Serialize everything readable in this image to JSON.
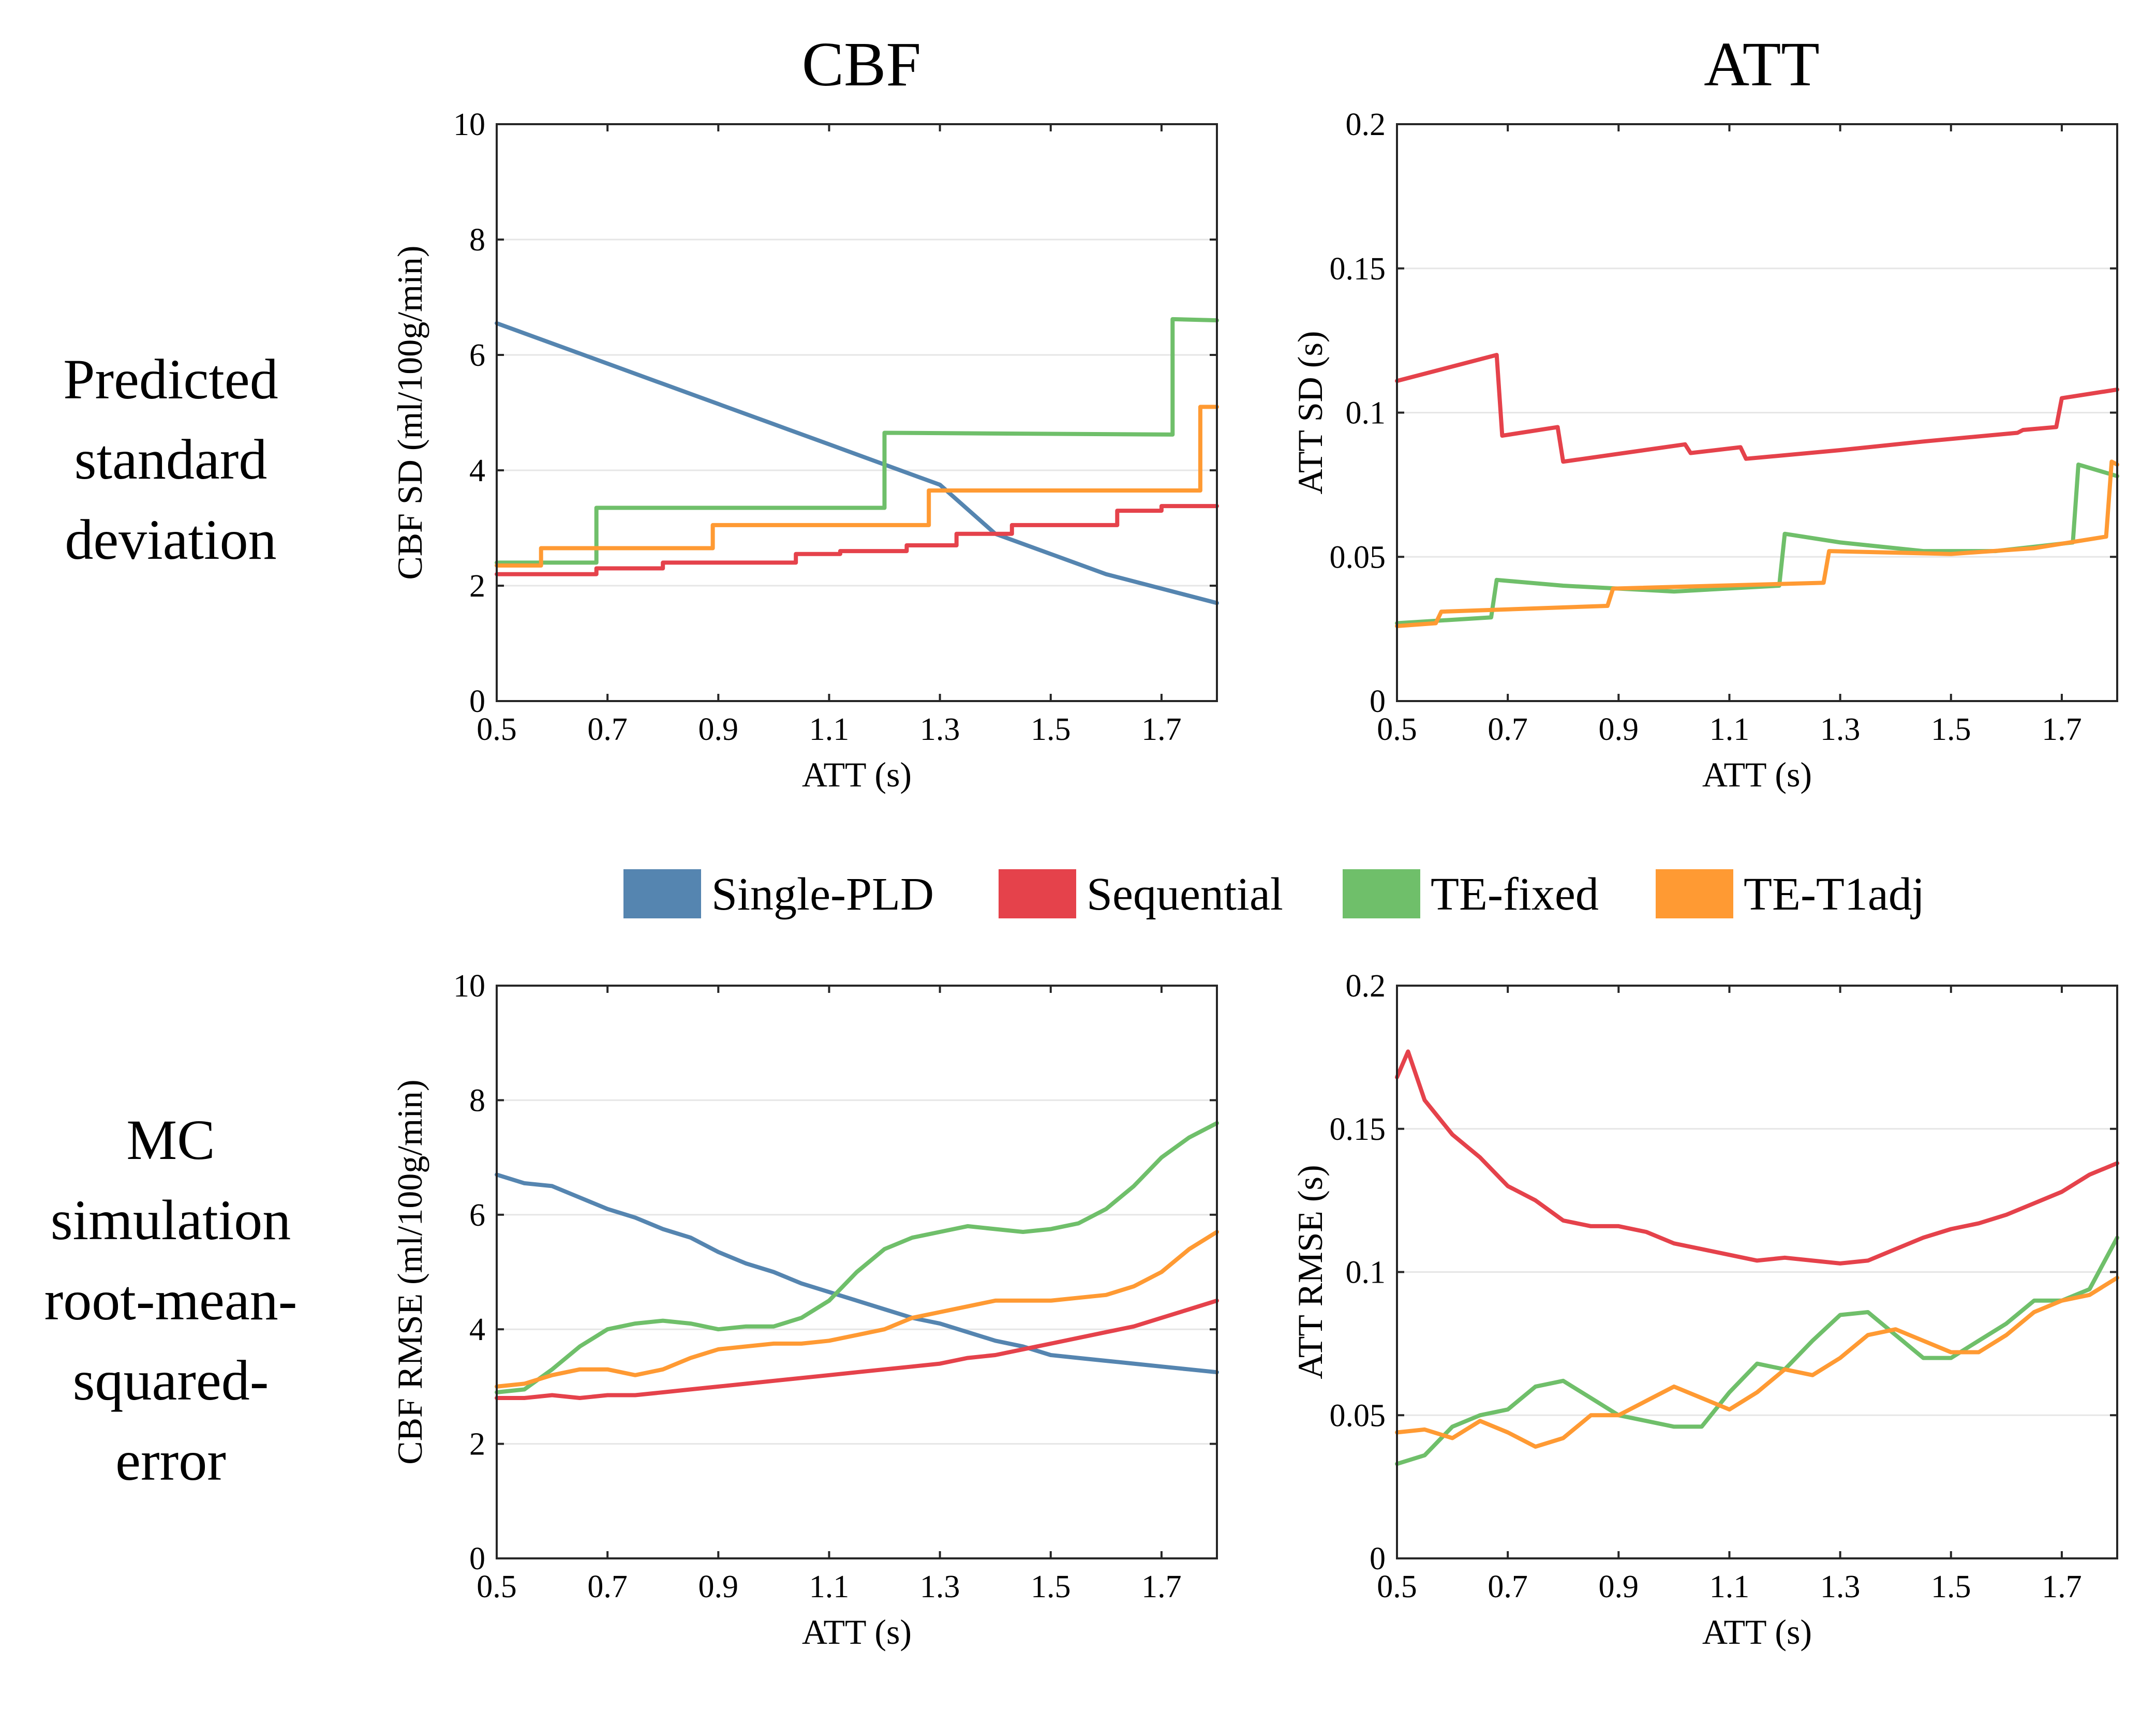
{
  "column_titles": [
    "CBF",
    "ATT"
  ],
  "row_labels": [
    [
      "Predicted",
      "standard",
      "deviation"
    ],
    [
      "MC",
      "simulation",
      "root-mean-",
      "squared-",
      "error"
    ]
  ],
  "legend": [
    {
      "name": "Single-PLD",
      "color": "#5585b0"
    },
    {
      "name": "Sequential",
      "color": "#e5424b"
    },
    {
      "name": "TE-fixed",
      "color": "#6fbf6a"
    },
    {
      "name": "TE-T1adj",
      "color": "#ff9a33"
    }
  ],
  "chart_data": [
    {
      "type": "line",
      "position": "top-left",
      "xlabel": "ATT (s)",
      "ylabel": "CBF SD (ml/100g/min)",
      "xlim": [
        0.5,
        1.8
      ],
      "ylim": [
        0,
        10
      ],
      "xticks": [
        0.5,
        0.7,
        0.9,
        1.1,
        1.3,
        1.5,
        1.7
      ],
      "xtick_labels": [
        "0.5",
        "0.7",
        "0.9",
        "1.1",
        "1.3",
        "1.5",
        "1.7"
      ],
      "yticks": [
        0,
        2,
        4,
        6,
        8,
        10
      ],
      "ytick_labels": [
        "0",
        "2",
        "4",
        "6",
        "8",
        "10"
      ],
      "grid": true,
      "series": [
        {
          "name": "Single-PLD",
          "x": [
            0.5,
            0.6,
            0.7,
            0.8,
            0.9,
            1.0,
            1.1,
            1.2,
            1.3,
            1.4,
            1.5,
            1.6,
            1.7,
            1.8
          ],
          "y": [
            6.55,
            6.2,
            5.85,
            5.5,
            5.15,
            4.8,
            4.45,
            4.1,
            3.75,
            2.9,
            2.55,
            2.2,
            1.95,
            1.7
          ]
        },
        {
          "name": "Sequential",
          "x": [
            0.5,
            0.68,
            0.68,
            0.8,
            0.8,
            1.04,
            1.04,
            1.12,
            1.12,
            1.24,
            1.24,
            1.33,
            1.33,
            1.43,
            1.43,
            1.62,
            1.62,
            1.7,
            1.7,
            1.8
          ],
          "y": [
            2.2,
            2.2,
            2.3,
            2.3,
            2.4,
            2.4,
            2.55,
            2.55,
            2.6,
            2.6,
            2.7,
            2.7,
            2.9,
            2.9,
            3.05,
            3.05,
            3.3,
            3.3,
            3.38,
            3.38
          ]
        },
        {
          "name": "TE-fixed",
          "x": [
            0.5,
            0.68,
            0.68,
            1.2,
            1.2,
            1.72,
            1.72,
            1.8
          ],
          "y": [
            2.4,
            2.4,
            3.35,
            3.35,
            4.65,
            4.62,
            6.62,
            6.6
          ]
        },
        {
          "name": "TE-T1adj",
          "x": [
            0.5,
            0.58,
            0.58,
            0.89,
            0.89,
            1.28,
            1.28,
            1.77,
            1.77,
            1.8
          ],
          "y": [
            2.35,
            2.35,
            2.65,
            2.65,
            3.05,
            3.05,
            3.65,
            3.65,
            5.1,
            5.1
          ]
        }
      ]
    },
    {
      "type": "line",
      "position": "top-right",
      "xlabel": "ATT (s)",
      "ylabel": "ATT SD (s)",
      "xlim": [
        0.5,
        1.8
      ],
      "ylim": [
        0,
        0.2
      ],
      "xticks": [
        0.5,
        0.7,
        0.9,
        1.1,
        1.3,
        1.5,
        1.7
      ],
      "xtick_labels": [
        "0.5",
        "0.7",
        "0.9",
        "1.1",
        "1.3",
        "1.5",
        "1.7"
      ],
      "yticks": [
        0,
        0.05,
        0.1,
        0.15,
        0.2
      ],
      "ytick_labels": [
        "0",
        "0.05",
        "0.1",
        "0.15",
        "0.2"
      ],
      "grid": true,
      "series": [
        {
          "name": "Sequential",
          "x": [
            0.5,
            0.68,
            0.69,
            0.79,
            0.8,
            1.02,
            1.03,
            1.12,
            1.13,
            1.3,
            1.45,
            1.62,
            1.63,
            1.69,
            1.7,
            1.8
          ],
          "y": [
            0.111,
            0.12,
            0.092,
            0.095,
            0.083,
            0.089,
            0.086,
            0.088,
            0.084,
            0.087,
            0.09,
            0.093,
            0.094,
            0.095,
            0.105,
            0.108
          ]
        },
        {
          "name": "TE-fixed",
          "x": [
            0.5,
            0.67,
            0.68,
            0.8,
            1.0,
            1.19,
            1.2,
            1.3,
            1.45,
            1.58,
            1.72,
            1.73,
            1.8
          ],
          "y": [
            0.027,
            0.029,
            0.042,
            0.04,
            0.038,
            0.04,
            0.058,
            0.055,
            0.052,
            0.052,
            0.055,
            0.082,
            0.078
          ]
        },
        {
          "name": "TE-T1adj",
          "x": [
            0.5,
            0.57,
            0.58,
            0.88,
            0.89,
            1.27,
            1.28,
            1.5,
            1.65,
            1.78,
            1.79,
            1.8
          ],
          "y": [
            0.026,
            0.027,
            0.031,
            0.033,
            0.039,
            0.041,
            0.052,
            0.051,
            0.053,
            0.057,
            0.083,
            0.082
          ]
        }
      ]
    },
    {
      "type": "line",
      "position": "bottom-left",
      "xlabel": "ATT (s)",
      "ylabel": "CBF RMSE (ml/100g/min)",
      "xlim": [
        0.5,
        1.8
      ],
      "ylim": [
        0,
        10
      ],
      "xticks": [
        0.5,
        0.7,
        0.9,
        1.1,
        1.3,
        1.5,
        1.7
      ],
      "xtick_labels": [
        "0.5",
        "0.7",
        "0.9",
        "1.1",
        "1.3",
        "1.5",
        "1.7"
      ],
      "yticks": [
        0,
        2,
        4,
        6,
        8,
        10
      ],
      "ytick_labels": [
        "0",
        "2",
        "4",
        "6",
        "8",
        "10"
      ],
      "grid": true,
      "series": [
        {
          "name": "Single-PLD",
          "x": [
            0.5,
            0.55,
            0.6,
            0.65,
            0.7,
            0.75,
            0.8,
            0.85,
            0.9,
            0.95,
            1.0,
            1.05,
            1.1,
            1.15,
            1.2,
            1.25,
            1.3,
            1.35,
            1.4,
            1.45,
            1.5,
            1.55,
            1.6,
            1.65,
            1.7,
            1.75,
            1.8
          ],
          "y": [
            6.7,
            6.55,
            6.5,
            6.3,
            6.1,
            5.95,
            5.75,
            5.6,
            5.35,
            5.15,
            5.0,
            4.8,
            4.65,
            4.5,
            4.35,
            4.2,
            4.1,
            3.95,
            3.8,
            3.7,
            3.55,
            3.5,
            3.45,
            3.4,
            3.35,
            3.3,
            3.25
          ]
        },
        {
          "name": "Sequential",
          "x": [
            0.5,
            0.55,
            0.6,
            0.65,
            0.7,
            0.75,
            0.8,
            0.85,
            0.9,
            0.95,
            1.0,
            1.05,
            1.1,
            1.15,
            1.2,
            1.25,
            1.3,
            1.35,
            1.4,
            1.45,
            1.5,
            1.55,
            1.6,
            1.65,
            1.7,
            1.75,
            1.8
          ],
          "y": [
            2.8,
            2.8,
            2.85,
            2.8,
            2.85,
            2.85,
            2.9,
            2.95,
            3.0,
            3.05,
            3.1,
            3.15,
            3.2,
            3.25,
            3.3,
            3.35,
            3.4,
            3.5,
            3.55,
            3.65,
            3.75,
            3.85,
            3.95,
            4.05,
            4.2,
            4.35,
            4.5
          ]
        },
        {
          "name": "TE-fixed",
          "x": [
            0.5,
            0.55,
            0.6,
            0.65,
            0.7,
            0.75,
            0.8,
            0.85,
            0.9,
            0.95,
            1.0,
            1.05,
            1.1,
            1.15,
            1.2,
            1.25,
            1.3,
            1.35,
            1.4,
            1.45,
            1.5,
            1.55,
            1.6,
            1.65,
            1.7,
            1.75,
            1.8
          ],
          "y": [
            2.9,
            2.95,
            3.3,
            3.7,
            4.0,
            4.1,
            4.15,
            4.1,
            4.0,
            4.05,
            4.05,
            4.2,
            4.5,
            5.0,
            5.4,
            5.6,
            5.7,
            5.8,
            5.75,
            5.7,
            5.75,
            5.85,
            6.1,
            6.5,
            7.0,
            7.35,
            7.6
          ]
        },
        {
          "name": "TE-T1adj",
          "x": [
            0.5,
            0.55,
            0.6,
            0.65,
            0.7,
            0.75,
            0.8,
            0.85,
            0.9,
            0.95,
            1.0,
            1.05,
            1.1,
            1.15,
            1.2,
            1.25,
            1.3,
            1.35,
            1.4,
            1.45,
            1.5,
            1.55,
            1.6,
            1.65,
            1.7,
            1.75,
            1.8
          ],
          "y": [
            3.0,
            3.05,
            3.2,
            3.3,
            3.3,
            3.2,
            3.3,
            3.5,
            3.65,
            3.7,
            3.75,
            3.75,
            3.8,
            3.9,
            4.0,
            4.2,
            4.3,
            4.4,
            4.5,
            4.5,
            4.5,
            4.55,
            4.6,
            4.75,
            5.0,
            5.4,
            5.7
          ]
        }
      ]
    },
    {
      "type": "line",
      "position": "bottom-right",
      "xlabel": "ATT (s)",
      "ylabel": "ATT RMSE (s)",
      "xlim": [
        0.5,
        1.8
      ],
      "ylim": [
        0,
        0.2
      ],
      "xticks": [
        0.5,
        0.7,
        0.9,
        1.1,
        1.3,
        1.5,
        1.7
      ],
      "xtick_labels": [
        "0.5",
        "0.7",
        "0.9",
        "1.1",
        "1.3",
        "1.5",
        "1.7"
      ],
      "yticks": [
        0,
        0.05,
        0.1,
        0.15,
        0.2
      ],
      "ytick_labels": [
        "0",
        "0.05",
        "0.1",
        "0.15",
        "0.2"
      ],
      "grid": true,
      "series": [
        {
          "name": "Sequential",
          "x": [
            0.5,
            0.52,
            0.55,
            0.6,
            0.65,
            0.7,
            0.75,
            0.8,
            0.85,
            0.9,
            0.95,
            1.0,
            1.05,
            1.1,
            1.15,
            1.2,
            1.25,
            1.3,
            1.35,
            1.4,
            1.45,
            1.5,
            1.55,
            1.6,
            1.65,
            1.7,
            1.75,
            1.8
          ],
          "y": [
            0.168,
            0.177,
            0.16,
            0.148,
            0.14,
            0.13,
            0.125,
            0.118,
            0.116,
            0.116,
            0.114,
            0.11,
            0.108,
            0.106,
            0.104,
            0.105,
            0.104,
            0.103,
            0.104,
            0.108,
            0.112,
            0.115,
            0.117,
            0.12,
            0.124,
            0.128,
            0.134,
            0.138
          ]
        },
        {
          "name": "TE-fixed",
          "x": [
            0.5,
            0.55,
            0.6,
            0.65,
            0.7,
            0.75,
            0.8,
            0.85,
            0.9,
            0.95,
            1.0,
            1.05,
            1.1,
            1.15,
            1.2,
            1.25,
            1.3,
            1.35,
            1.4,
            1.45,
            1.5,
            1.55,
            1.6,
            1.65,
            1.7,
            1.75,
            1.8
          ],
          "y": [
            0.033,
            0.036,
            0.046,
            0.05,
            0.052,
            0.06,
            0.062,
            0.056,
            0.05,
            0.048,
            0.046,
            0.046,
            0.058,
            0.068,
            0.066,
            0.076,
            0.085,
            0.086,
            0.078,
            0.07,
            0.07,
            0.076,
            0.082,
            0.09,
            0.09,
            0.094,
            0.112
          ]
        },
        {
          "name": "TE-T1adj",
          "x": [
            0.5,
            0.55,
            0.6,
            0.65,
            0.7,
            0.75,
            0.8,
            0.85,
            0.9,
            0.95,
            1.0,
            1.05,
            1.1,
            1.15,
            1.2,
            1.25,
            1.3,
            1.35,
            1.4,
            1.45,
            1.5,
            1.55,
            1.6,
            1.65,
            1.7,
            1.75,
            1.8
          ],
          "y": [
            0.044,
            0.045,
            0.042,
            0.048,
            0.044,
            0.039,
            0.042,
            0.05,
            0.05,
            0.055,
            0.06,
            0.056,
            0.052,
            0.058,
            0.066,
            0.064,
            0.07,
            0.078,
            0.08,
            0.076,
            0.072,
            0.072,
            0.078,
            0.086,
            0.09,
            0.092,
            0.098
          ]
        }
      ]
    }
  ]
}
